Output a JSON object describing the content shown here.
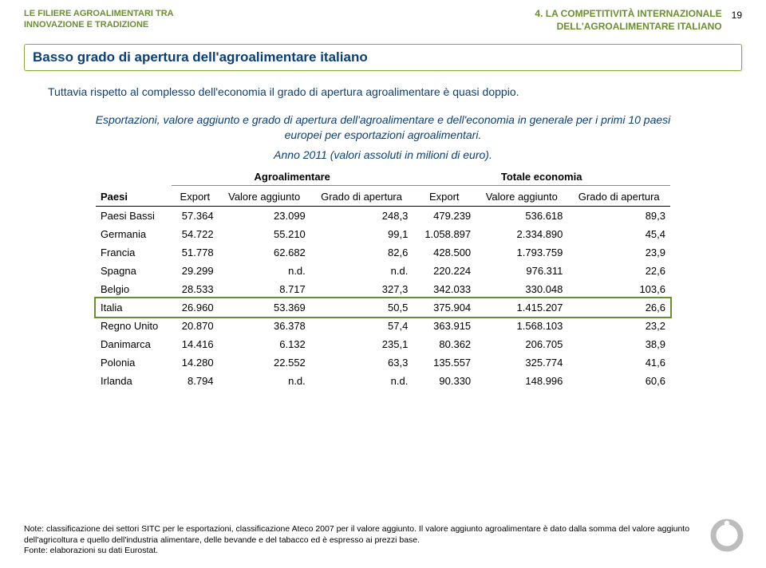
{
  "header": {
    "left_line1": "LE FILIERE AGROALIMENTARI TRA",
    "left_line2": "INNOVAZIONE E TRADIZIONE",
    "right_line1": "4. LA COMPETITIVITÀ INTERNAZIONALE",
    "right_line2": "DELL'AGROALIMENTARE ITALIANO",
    "page_number": "19"
  },
  "title": "Basso grado di apertura dell'agroalimentare italiano",
  "intro": "Tuttavia rispetto al complesso dell'economia il grado di apertura agroalimentare è quasi doppio.",
  "desc_line1": "Esportazioni, valore aggiunto e grado di apertura dell'agroalimentare e dell'economia in generale per i primi 10 paesi europei per esportazioni agroalimentari.",
  "desc_line2": "Anno 2011 (valori assoluti in milioni di euro).",
  "table": {
    "group1": "Agroalimentare",
    "group2": "Totale economia",
    "col_paesi": "Paesi",
    "col_export": "Export",
    "col_va": "Valore aggiunto",
    "col_ga": "Grado di apertura",
    "highlight_index": 5,
    "rows": [
      {
        "c": "Paesi Bassi",
        "e1": "57.364",
        "v1": "23.099",
        "g1": "248,3",
        "e2": "479.239",
        "v2": "536.618",
        "g2": "89,3"
      },
      {
        "c": "Germania",
        "e1": "54.722",
        "v1": "55.210",
        "g1": "99,1",
        "e2": "1.058.897",
        "v2": "2.334.890",
        "g2": "45,4"
      },
      {
        "c": "Francia",
        "e1": "51.778",
        "v1": "62.682",
        "g1": "82,6",
        "e2": "428.500",
        "v2": "1.793.759",
        "g2": "23,9"
      },
      {
        "c": "Spagna",
        "e1": "29.299",
        "v1": "n.d.",
        "g1": "n.d.",
        "e2": "220.224",
        "v2": "976.311",
        "g2": "22,6"
      },
      {
        "c": "Belgio",
        "e1": "28.533",
        "v1": "8.717",
        "g1": "327,3",
        "e2": "342.033",
        "v2": "330.048",
        "g2": "103,6"
      },
      {
        "c": "Italia",
        "e1": "26.960",
        "v1": "53.369",
        "g1": "50,5",
        "e2": "375.904",
        "v2": "1.415.207",
        "g2": "26,6"
      },
      {
        "c": "Regno Unito",
        "e1": "20.870",
        "v1": "36.378",
        "g1": "57,4",
        "e2": "363.915",
        "v2": "1.568.103",
        "g2": "23,2"
      },
      {
        "c": "Danimarca",
        "e1": "14.416",
        "v1": "6.132",
        "g1": "235,1",
        "e2": "80.362",
        "v2": "206.705",
        "g2": "38,9"
      },
      {
        "c": "Polonia",
        "e1": "14.280",
        "v1": "22.552",
        "g1": "63,3",
        "e2": "135.557",
        "v2": "325.774",
        "g2": "41,6"
      },
      {
        "c": "Irlanda",
        "e1": "8.794",
        "v1": "n.d.",
        "g1": "n.d.",
        "e2": "90.330",
        "v2": "148.996",
        "g2": "60,6"
      }
    ]
  },
  "notes": {
    "line1": "Note: classificazione dei settori SITC per le esportazioni, classificazione Ateco 2007 per il valore aggiunto. Il valore aggiunto agroalimentare è dato dalla somma del valore aggiunto dell'agricoltura e quello dell'industria alimentare, delle bevande e del tabacco ed è espresso ai prezzi base.",
    "line2": "Fonte: elaborazioni su dati Eurostat."
  },
  "logo_color": "#bcbcbc"
}
